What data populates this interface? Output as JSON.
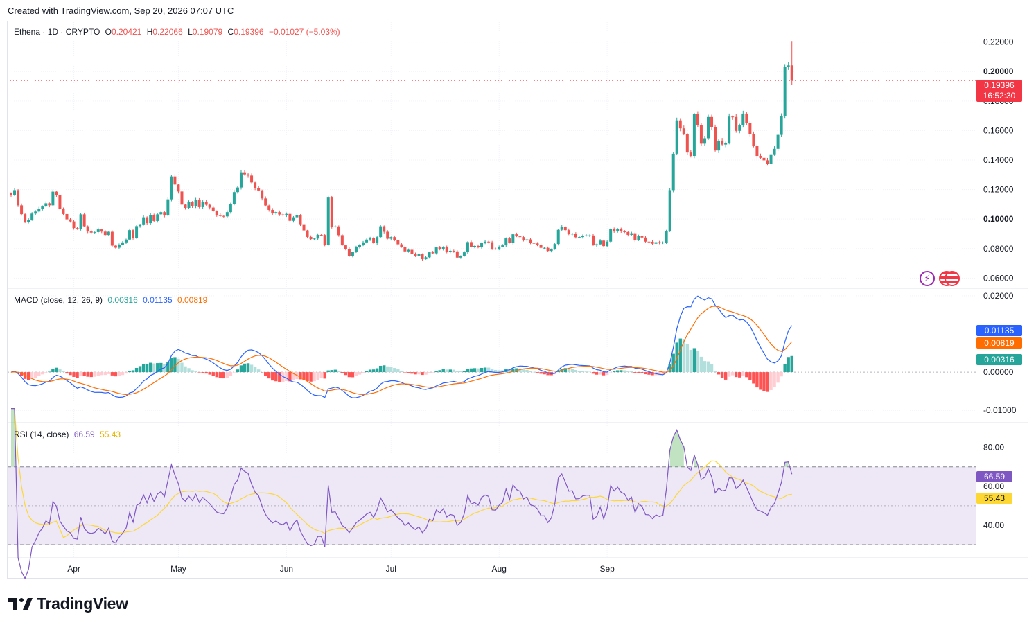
{
  "header": {
    "created_with": "Created with TradingView.com, Sep 20, 2026 07:07 UTC"
  },
  "price_legend": {
    "symbol": "Ethena · 1D · CRYPTO",
    "o_label": "O",
    "o": "0.20421",
    "h_label": "H",
    "h": "0.22066",
    "l_label": "L",
    "l": "0.19079",
    "c_label": "C",
    "c": "0.19396",
    "change": "−0.01027 (−5.03%)"
  },
  "macd_legend": {
    "title": "MACD (close, 12, 26, 9)",
    "hist": "0.00316",
    "macd": "0.01135",
    "signal": "0.00819"
  },
  "rsi_legend": {
    "title": "RSI (14, close)",
    "rsi": "66.59",
    "ma": "55.43"
  },
  "tags": {
    "last_price": "0.19396",
    "countdown": "16:52:30",
    "macd": "0.01135",
    "signal": "0.00819",
    "hist": "0.00316",
    "rsi": "66.59",
    "rsi_ma": "55.43"
  },
  "brand": {
    "name": "TradingView"
  },
  "colors": {
    "up": "#26a69a",
    "down": "#ef5350",
    "macd_line": "#2962ff",
    "signal_line": "#ff6d00",
    "hist_up_strong": "#26a69a",
    "hist_up_weak": "#b2dfdb",
    "hist_down_strong": "#ff5252",
    "hist_down_weak": "#ffcdd2",
    "rsi_line": "#7e57c2",
    "rsi_ma": "#fdd835",
    "rsi_band": "#ede7f6",
    "grid": "#f0f3fa",
    "text": "#131722"
  },
  "chart_data": [
    {
      "type": "candlestick",
      "title": "Ethena · 1D · CRYPTO",
      "ylim": [
        0.055,
        0.225
      ],
      "yticks": [
        "0.22000",
        "0.20000",
        "0.18000",
        "0.16000",
        "0.14000",
        "0.12000",
        "0.10000",
        "0.08000",
        "0.06000"
      ],
      "xticks": [
        "Apr",
        "May",
        "Jun",
        "Jul",
        "Aug",
        "Sep"
      ],
      "x_start": "2026-03-14",
      "last_bar": "2026-09-20",
      "closes": [
        0.1165,
        0.1196,
        0.1093,
        0.1033,
        0.0981,
        0.0995,
        0.1037,
        0.1051,
        0.1071,
        0.1085,
        0.1107,
        0.1093,
        0.1186,
        0.1162,
        0.1071,
        0.1034,
        0.0998,
        0.0984,
        0.0939,
        0.0933,
        0.1032,
        0.0951,
        0.0916,
        0.0908,
        0.0912,
        0.093,
        0.0915,
        0.0892,
        0.0914,
        0.082,
        0.0806,
        0.0827,
        0.0842,
        0.0861,
        0.0925,
        0.0871,
        0.0952,
        0.0964,
        0.1012,
        0.0972,
        0.1028,
        0.0987,
        0.1032,
        0.1047,
        0.1024,
        0.1134,
        0.1289,
        0.1234,
        0.1187,
        0.1098,
        0.1076,
        0.1114,
        0.1086,
        0.1132,
        0.1081,
        0.1117,
        0.1097,
        0.1078,
        0.1053,
        0.1028,
        0.1021,
        0.1018,
        0.1047,
        0.1104,
        0.1183,
        0.1214,
        0.1317,
        0.1303,
        0.1295,
        0.1248,
        0.1211,
        0.1194,
        0.114,
        0.1092,
        0.1062,
        0.1038,
        0.1047,
        0.1031,
        0.1026,
        0.1035,
        0.0988,
        0.1012,
        0.1027,
        0.0965,
        0.0923,
        0.0879,
        0.0864,
        0.0868,
        0.0893,
        0.0892,
        0.0825,
        0.1146,
        0.0947,
        0.095,
        0.0891,
        0.0822,
        0.0798,
        0.0749,
        0.0777,
        0.0809,
        0.0825,
        0.0842,
        0.0861,
        0.0871,
        0.0837,
        0.0878,
        0.0951,
        0.0914,
        0.0867,
        0.0878,
        0.0856,
        0.0829,
        0.0813,
        0.0781,
        0.0792,
        0.0766,
        0.0752,
        0.0762,
        0.0728,
        0.0741,
        0.0775,
        0.0768,
        0.0808,
        0.0795,
        0.0811,
        0.0776,
        0.0785,
        0.0781,
        0.0739,
        0.0748,
        0.0775,
        0.0844,
        0.0812,
        0.0818,
        0.0808,
        0.0838,
        0.0847,
        0.0843,
        0.0799,
        0.0798,
        0.0813,
        0.0822,
        0.0869,
        0.0838,
        0.0897,
        0.0883,
        0.0878,
        0.0855,
        0.0862,
        0.0838,
        0.0835,
        0.0826,
        0.0805,
        0.0805,
        0.0784,
        0.0795,
        0.0831,
        0.0927,
        0.0947,
        0.0925,
        0.0899,
        0.0901,
        0.0877,
        0.0878,
        0.0887,
        0.0889,
        0.0889,
        0.0822,
        0.0829,
        0.0854,
        0.0817,
        0.0847,
        0.0932,
        0.0916,
        0.0932,
        0.0917,
        0.0912,
        0.0893,
        0.0904,
        0.0855,
        0.0884,
        0.0875,
        0.0847,
        0.0846,
        0.0833,
        0.0843,
        0.0838,
        0.0841,
        0.0918,
        0.1196,
        0.1443,
        0.1669,
        0.1615,
        0.1577,
        0.1451,
        0.1428,
        0.1711,
        0.1637,
        0.1511,
        0.1548,
        0.1692,
        0.1623,
        0.1465,
        0.1532,
        0.1505,
        0.1516,
        0.1695,
        0.1692,
        0.1598,
        0.1636,
        0.1715,
        0.1649,
        0.1578,
        0.1496,
        0.1428,
        0.1415,
        0.1398,
        0.1373,
        0.1439,
        0.1476,
        0.1571,
        0.1697,
        0.2032,
        0.2042,
        0.194
      ]
    },
    {
      "type": "line",
      "title": "MACD (close, 12, 26, 9)",
      "ylim": [
        -0.0125,
        0.0216
      ],
      "yticks": [
        "0.02000",
        "0.00000",
        "-0.01000"
      ],
      "series": [
        {
          "name": "MACD",
          "values": "derived from closes: EMA12 − EMA26"
        },
        {
          "name": "Signal",
          "values": "EMA9 of MACD"
        },
        {
          "name": "Histogram",
          "values": "MACD − Signal"
        }
      ]
    },
    {
      "type": "line",
      "title": "RSI (14, close)",
      "ylim": [
        25,
        92
      ],
      "yticks": [
        "80.00",
        "60.00",
        "40.00"
      ],
      "bands": [
        30,
        50,
        70
      ],
      "series": [
        {
          "name": "RSI",
          "values": "derived from closes, 14-period"
        },
        {
          "name": "RSI-based MA",
          "values": "SMA14 of RSI"
        }
      ]
    }
  ]
}
